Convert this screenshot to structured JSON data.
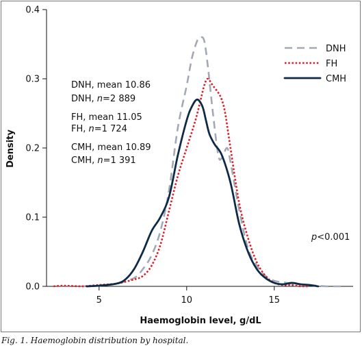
{
  "chart_data": {
    "type": "line",
    "title": "",
    "xlabel": "Haemoglobin level, g/dL",
    "ylabel": "Density",
    "xlim": [
      2,
      19.5
    ],
    "ylim": [
      0,
      0.4
    ],
    "xticks": [
      5,
      10,
      15
    ],
    "yticks": [
      0.0,
      0.1,
      0.2,
      0.3,
      0.4
    ],
    "xtick_labels": [
      "5",
      "10",
      "15"
    ],
    "ytick_labels": [
      "0.0",
      "0.1",
      "0.2",
      "0.3",
      "0.4"
    ],
    "legend_position": "top-right",
    "series": [
      {
        "name": "DNH",
        "color": "#a2a9b4",
        "style": "dashed",
        "x": [
          4.0,
          5.0,
          6.0,
          7.0,
          7.5,
          8.0,
          8.5,
          9.0,
          9.5,
          10.0,
          10.3,
          10.6,
          10.8,
          11.0,
          11.2,
          11.5,
          11.8,
          12.0,
          12.3,
          12.5,
          13.0,
          13.5,
          14.0,
          14.5,
          15.0,
          15.5,
          16.0,
          17.0,
          18.0,
          19.0
        ],
        "y": [
          0.0,
          0.001,
          0.004,
          0.012,
          0.025,
          0.045,
          0.08,
          0.14,
          0.23,
          0.29,
          0.33,
          0.355,
          0.36,
          0.355,
          0.32,
          0.25,
          0.19,
          0.185,
          0.2,
          0.18,
          0.11,
          0.055,
          0.03,
          0.015,
          0.008,
          0.006,
          0.004,
          0.002,
          0.0,
          0.0
        ]
      },
      {
        "name": "FH",
        "color": "#d8202a",
        "style": "dotted",
        "x": [
          2.4,
          3.0,
          4.0,
          5.0,
          6.0,
          7.0,
          7.5,
          8.0,
          8.5,
          9.0,
          9.5,
          10.0,
          10.5,
          10.8,
          11.0,
          11.2,
          11.5,
          11.8,
          12.0,
          12.2,
          12.5,
          13.0,
          13.5,
          14.0,
          14.5,
          15.0,
          15.5,
          16.0,
          16.5,
          17.0
        ],
        "y": [
          0.0,
          0.001,
          0.0,
          0.002,
          0.004,
          0.01,
          0.015,
          0.03,
          0.06,
          0.11,
          0.16,
          0.2,
          0.24,
          0.27,
          0.29,
          0.3,
          0.29,
          0.28,
          0.27,
          0.25,
          0.2,
          0.12,
          0.07,
          0.035,
          0.015,
          0.005,
          0.002,
          0.002,
          0.0,
          0.0
        ]
      },
      {
        "name": "CMH",
        "color": "#0e2a47",
        "style": "solid",
        "x": [
          4.3,
          5.0,
          6.0,
          6.5,
          7.0,
          7.5,
          8.0,
          8.5,
          9.0,
          9.5,
          10.0,
          10.3,
          10.6,
          10.9,
          11.1,
          11.3,
          11.6,
          12.0,
          12.5,
          13.0,
          13.5,
          14.0,
          14.5,
          15.0,
          15.5,
          16.0,
          16.5,
          17.0,
          17.5
        ],
        "y": [
          0.0,
          0.001,
          0.004,
          0.01,
          0.025,
          0.05,
          0.08,
          0.1,
          0.13,
          0.19,
          0.24,
          0.26,
          0.27,
          0.26,
          0.24,
          0.22,
          0.205,
          0.19,
          0.15,
          0.09,
          0.05,
          0.025,
          0.012,
          0.005,
          0.003,
          0.005,
          0.003,
          0.002,
          0.0
        ]
      }
    ],
    "annotations": {
      "dnh_mean": "DNH, mean 10.86",
      "dnh_n_prefix": "DNH, ",
      "dnh_n_italic": "n",
      "dnh_n_value": "=2 889",
      "fh_mean": "FH, mean 11.05",
      "fh_n_prefix": "FH, ",
      "fh_n_italic": "n",
      "fh_n_value": "=1 724",
      "cmh_mean": "CMH, mean 10.89",
      "cmh_n_prefix": "CMH, ",
      "cmh_n_italic": "n",
      "cmh_n_value": "=1 391",
      "p_italic": "p",
      "p_value": "<0.001"
    }
  },
  "caption": "Fig. 1. Haemoglobin distribution by hospital."
}
